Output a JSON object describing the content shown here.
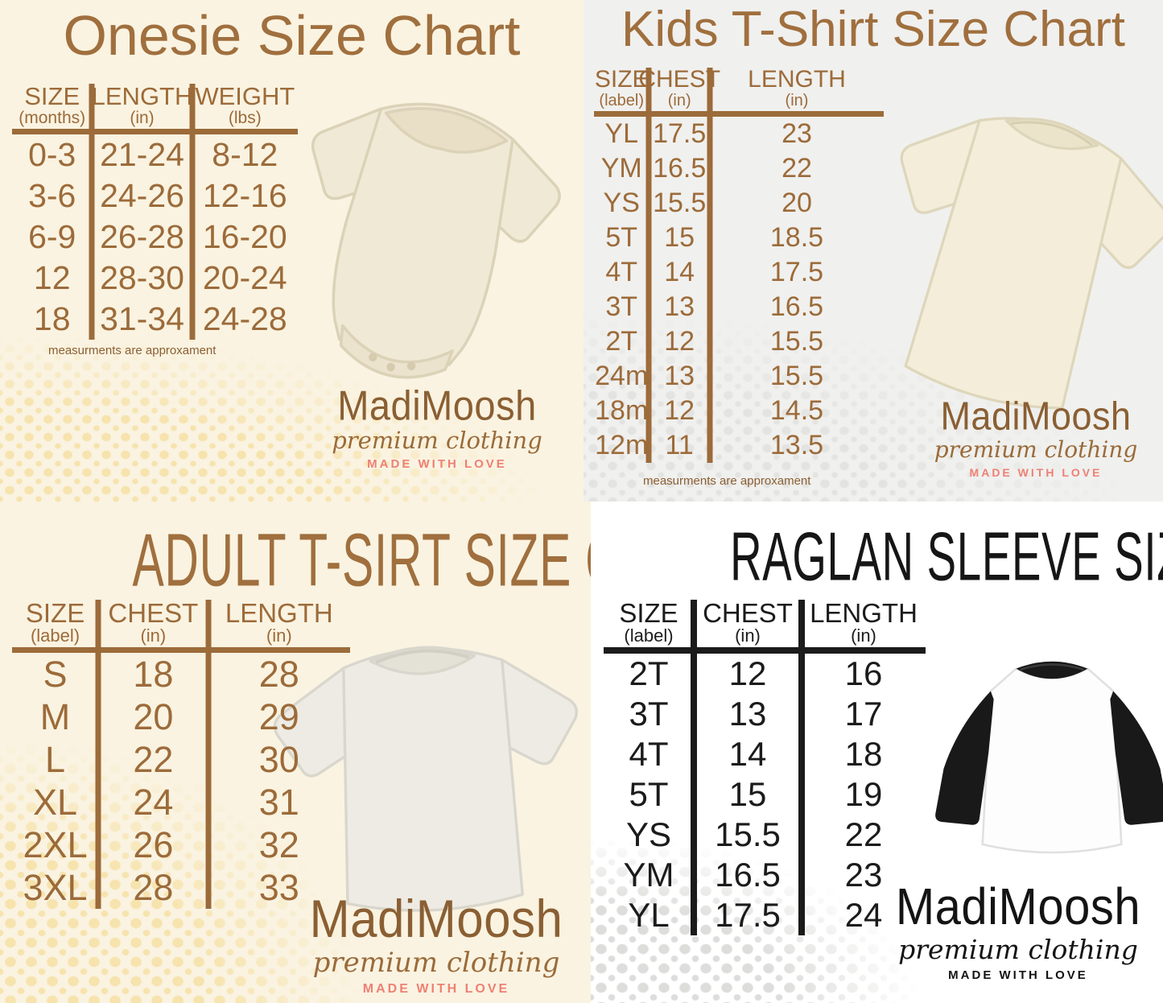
{
  "brand": {
    "name": "MadiMoosh",
    "tagline": "premium clothing",
    "motto": "MADE WITH LOVE"
  },
  "colors": {
    "brown_text": "#9c6b3a",
    "brown_title": "#a06f3e",
    "salmon_motto": "#ee8074",
    "black_text": "#1b1b1b",
    "cream_background": "#faf3e1",
    "gray_background": "#f0f0ee",
    "white_background": "#ffffff",
    "dot_yellow": "#f6e3ad",
    "dot_gray": "#e3e3e1"
  },
  "chart_data": [
    {
      "type": "table",
      "id": "onesie",
      "title": "Onesie Size Chart",
      "columns": [
        {
          "label": "SIZE",
          "unit": "(months)"
        },
        {
          "label": "LENGTH",
          "unit": "(in)"
        },
        {
          "label": "WEIGHT",
          "unit": "(lbs)"
        }
      ],
      "rows": [
        [
          "0-3",
          "21-24",
          "8-12"
        ],
        [
          "3-6",
          "24-26",
          "12-16"
        ],
        [
          "6-9",
          "26-28",
          "16-20"
        ],
        [
          "12",
          "28-30",
          "20-24"
        ],
        [
          "18",
          "31-34",
          "24-28"
        ]
      ],
      "note": "measurments are approxament",
      "shirt": "baby-onesie"
    },
    {
      "type": "table",
      "id": "kids-tshirt",
      "title": "Kids T-Shirt Size Chart",
      "columns": [
        {
          "label": "SIZE",
          "unit": "(label)"
        },
        {
          "label": "CHEST",
          "unit": "(in)"
        },
        {
          "label": "LENGTH",
          "unit": "(in)"
        }
      ],
      "rows": [
        [
          "YL",
          "17.5",
          "23"
        ],
        [
          "YM",
          "16.5",
          "22"
        ],
        [
          "YS",
          "15.5",
          "20"
        ],
        [
          "5T",
          "15",
          "18.5"
        ],
        [
          "4T",
          "14",
          "17.5"
        ],
        [
          "3T",
          "13",
          "16.5"
        ],
        [
          "2T",
          "12",
          "15.5"
        ],
        [
          "24m",
          "13",
          "15.5"
        ],
        [
          "18m",
          "12",
          "14.5"
        ],
        [
          "12m",
          "11",
          "13.5"
        ]
      ],
      "note": "measurments are approxament",
      "shirt": "kids-tshirt"
    },
    {
      "type": "table",
      "id": "adult-tshirt",
      "title": "ADULT T-SIRT SIZE CHART",
      "columns": [
        {
          "label": "SIZE",
          "unit": "(label)"
        },
        {
          "label": "CHEST",
          "unit": "(in)"
        },
        {
          "label": "LENGTH",
          "unit": "(in)"
        }
      ],
      "rows": [
        [
          "S",
          "18",
          "28"
        ],
        [
          "M",
          "20",
          "29"
        ],
        [
          "L",
          "22",
          "30"
        ],
        [
          "XL",
          "24",
          "31"
        ],
        [
          "2XL",
          "26",
          "32"
        ],
        [
          "3XL",
          "28",
          "33"
        ]
      ],
      "shirt": "adult-tshirt"
    },
    {
      "type": "table",
      "id": "raglan-sleeve",
      "title": "RAGLAN SLEEVE SIZE CHART",
      "columns": [
        {
          "label": "SIZE",
          "unit": "(label)"
        },
        {
          "label": "CHEST",
          "unit": "(in)"
        },
        {
          "label": "LENGTH",
          "unit": "(in)"
        }
      ],
      "rows": [
        [
          "2T",
          "12",
          "16"
        ],
        [
          "3T",
          "13",
          "17"
        ],
        [
          "4T",
          "14",
          "18"
        ],
        [
          "5T",
          "15",
          "19"
        ],
        [
          "YS",
          "15.5",
          "22"
        ],
        [
          "YM",
          "16.5",
          "23"
        ],
        [
          "YL",
          "17.5",
          "24"
        ]
      ],
      "shirt": "raglan-tee"
    }
  ]
}
